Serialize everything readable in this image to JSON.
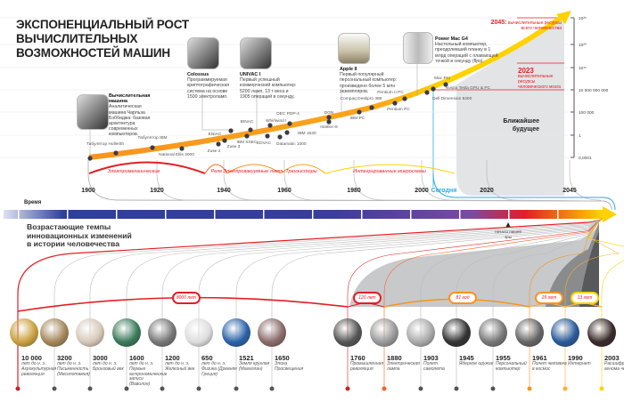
{
  "title": {
    "lines": [
      "ЭКСПОНЕНЦИАЛЬНЫЙ РОСТ",
      "ВЫЧИСЛИТЕЛЬНЫХ",
      "ВОЗМОЖНОСТЕЙ МАШИН"
    ]
  },
  "cards": [
    {
      "title": "Вычислительная машина",
      "text": "Аналитическая машина Чарльза Бэббиджа: базовая архитектура современных компьютеров."
    },
    {
      "title": "Colossus",
      "text": "Программируемая криптографическая система на основе 1500 электроламп."
    },
    {
      "title": "UNIVAC I",
      "text": "Первый успешный коммерческий компьютер: 5200 ламп, 13 т веса и 1905 операций в секунду."
    },
    {
      "title": "Apple II",
      "text": "Первый популярный персональный компьютер: произведено более 5 млн экземпляров."
    },
    {
      "title": "Power Mac G4",
      "text": "Настольный компьютер, преодолевший планку в 1 млрд операций с плавающей точкой в секунду (flps)."
    }
  ],
  "machines": [
    "Табулятор Hollerith",
    "Табулятор IBM",
    "National Ellis 3000",
    "Zuse 2",
    "Zuse 3",
    "ENIAC",
    "BINAC",
    "IBM SSEC",
    "Whirlwind I",
    "EDVAC",
    "DEC PDP-4",
    "Datamatic 1000",
    "IBM 1620",
    "DGN",
    "Intellec-8",
    "IBM PC",
    "Compaq Deskpro 386",
    "Pentium PC",
    "Pentium II PC",
    "Dell Dimension 8400",
    "Mac Pro",
    "Nvidia Tesla GPU & PC"
  ],
  "eras": [
    "Электромеханические",
    "Реле",
    "Электровакуумные лампы",
    "Транзисторы",
    "Интегрированные микросхемы"
  ],
  "years": [
    "1900",
    "1920",
    "1940",
    "1960",
    "1980",
    "2000",
    "Сегодня",
    "2020",
    "2045"
  ],
  "y_axis": [
    "10²⁵",
    "10²⁰",
    "10¹⁵",
    "10 000 000 000",
    "100 000",
    "1",
    "0,0001"
  ],
  "future": {
    "label": "Ближайшее будущее"
  },
  "milestones": [
    {
      "year": "2045:",
      "text": "вычислительные ресурсы всего человечества"
    },
    {
      "year": "2023",
      "text": "вычислительные ресурсы человеческого мозга"
    }
  ],
  "time_label": "Время",
  "era_start_label": "начало нашей эры",
  "subtitle": [
    "Возрастающие темпы",
    "инновационных изменений",
    "в истории человечества"
  ],
  "intervals": [
    "8000 лет",
    "120 лет",
    "81 год",
    "29 лет",
    "13 лет"
  ],
  "events": [
    {
      "year": "10 000",
      "text": "лет до н. э. Агрокультурная революция"
    },
    {
      "year": "3200",
      "text": "лет до н. э. Письменность (Месопотамия)"
    },
    {
      "year": "3000",
      "text": "лет до н. э. Бронзовый век"
    },
    {
      "year": "1600",
      "text": "лет до н. э. Первые астрономические записи (Вавилон)"
    },
    {
      "year": "1200",
      "text": "лет до н. э. Железный век"
    },
    {
      "year": "650",
      "text": "лет до н. э. Физика (Древняя Греция)"
    },
    {
      "year": "1521",
      "text": "Земля круглая (Магеллан)"
    },
    {
      "year": "1650",
      "text": "Эпоха Просвещения"
    },
    {
      "year": "1760",
      "text": "Промышленная революция"
    },
    {
      "year": "1880",
      "text": "Электрическая лампа"
    },
    {
      "year": "1903",
      "text": "Полет самолета"
    },
    {
      "year": "1945",
      "text": "Ядерное оружие"
    },
    {
      "year": "1955",
      "text": "Персональный компьютер"
    },
    {
      "year": "1961",
      "text": "Полет человека в космос"
    },
    {
      "year": "1990",
      "text": "Интернет"
    },
    {
      "year": "2003",
      "text": "Расшифровка генома человека"
    }
  ],
  "colors": {
    "curve_orange": "#f7941d",
    "curve_yellow": "#ffd200",
    "accent_red": "#e31e24",
    "today_blue": "#29abe2",
    "future_gray": "#e3e4e6",
    "timeline_blue": "#2e3f9a"
  }
}
